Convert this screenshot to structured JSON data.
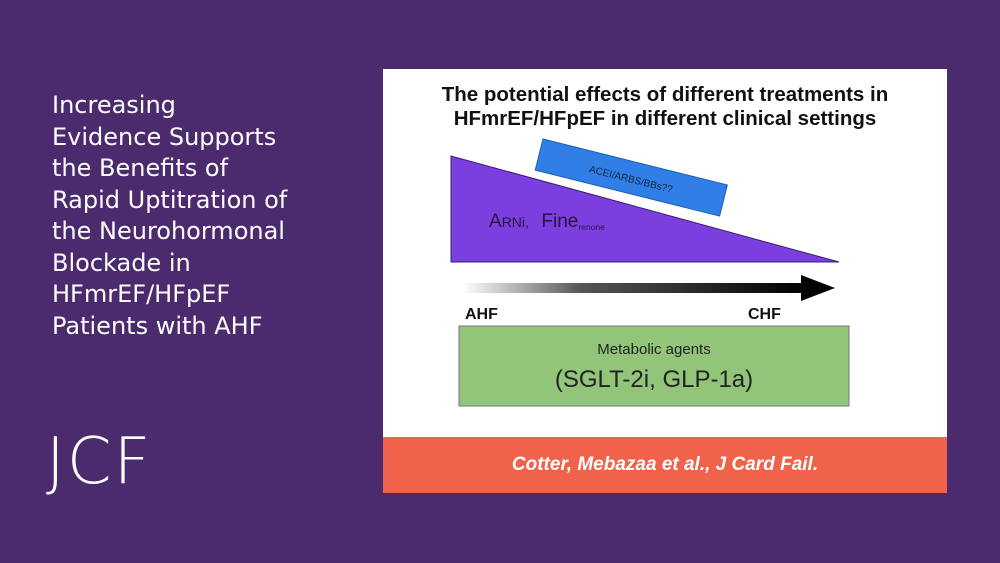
{
  "slide": {
    "title_lines": [
      "Increasing",
      "Evidence Supports",
      "the Benefits of",
      "Rapid Uptitration of",
      "the Neurohormonal",
      "Blockade in",
      "HFmrEF/HFpEF",
      "Patients with AHF"
    ],
    "logo": "JCF"
  },
  "figure": {
    "title_lines": [
      "The potential effects of different treatments in",
      "HFmrEF/HFpEF in different clinical settings"
    ],
    "wedge": {
      "label_main_1": "ARNi,",
      "label_a": "A",
      "label_rni": "RNi,",
      "label_fine": "Fine",
      "label_renone": "renone",
      "color": "#7b3fe0"
    },
    "tag": {
      "label": "ACEI/ARBS/BBs??",
      "color": "#2f7fe6"
    },
    "axis": {
      "start": "AHF",
      "end": "CHF"
    },
    "metabolic": {
      "line1": "Metabolic agents",
      "line2": "(SGLT-2i, GLP-1a)",
      "color": "#92c47a"
    },
    "citation": "Cotter, Mebazaa et al., J Card Fail.",
    "citation_color": "#f0634a"
  }
}
